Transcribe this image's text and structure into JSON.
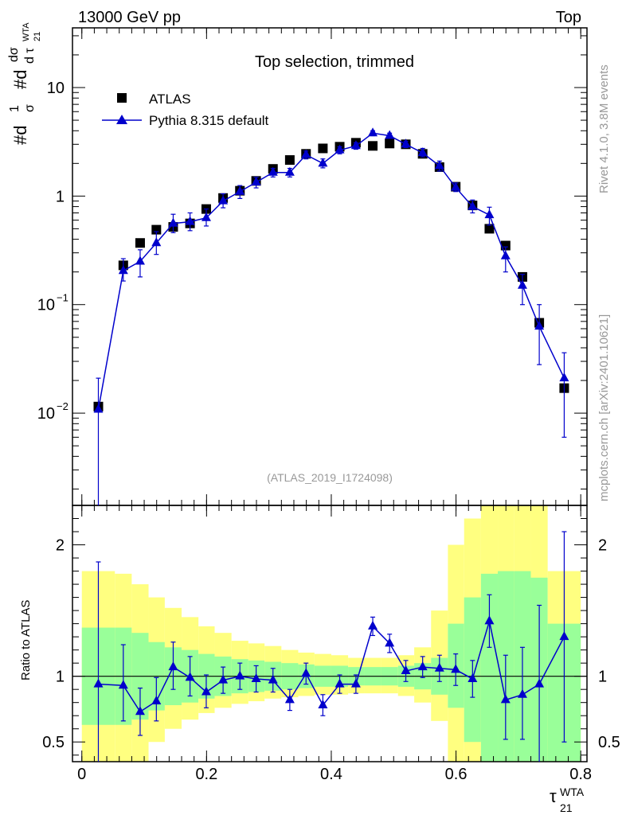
{
  "header": {
    "left": "13000 GeV pp",
    "right": "Top",
    "plot_title": "Top selection, trimmed",
    "analysis_ref": "(ATLAS_2019_I1724098)",
    "side_rivet": "Rivet 4.1.0,  3.8M events",
    "side_mcplots": "mcplots.cern.ch [arXiv:2401.10621]"
  },
  "axes": {
    "ylabel_main": "#d1/σ #dσ/dτ21WTA",
    "ylabel_main_frac1_num": "1",
    "ylabel_main_frac1_den": "σ",
    "ylabel_main_prefix": "#d",
    "ylabel_main_frac2_num": "dσ",
    "ylabel_main_frac2_den": "d τ",
    "ylabel_main_sup": "WTA",
    "ylabel_main_sub": "21",
    "ylabel_ratio": "Ratio to ATLAS",
    "xlabel_base": "τ",
    "xlabel_sup": "WTA",
    "xlabel_sub": "21",
    "x_ticks": [
      "0",
      "0.2",
      "0.4",
      "0.6",
      "0.8"
    ],
    "y_main_ticks": [
      "10",
      "1",
      "10",
      "10"
    ],
    "y_main_tick_exps": [
      "",
      "",
      "−1",
      "−2"
    ],
    "y_ratio_ticks": [
      "2",
      "1",
      "0.5"
    ]
  },
  "legend": {
    "data": "ATLAS",
    "mc": "Pythia 8.315 default"
  },
  "colors": {
    "mc": "#0000cc",
    "data": "#000000",
    "band_inner": "#99ff99",
    "band_outer": "#ffff80"
  },
  "chart_data": {
    "type": "scatter",
    "x_range": [
      -0.015,
      0.81
    ],
    "y_main_range_log10": [
      -2.85,
      1.55
    ],
    "y_ratio_range": [
      0.35,
      2.3
    ],
    "x": [
      0.0265,
      0.0665,
      0.0935,
      0.1195,
      0.1465,
      0.1735,
      0.1995,
      0.2265,
      0.2535,
      0.2795,
      0.3065,
      0.3335,
      0.3595,
      0.3865,
      0.4135,
      0.4395,
      0.4665,
      0.4935,
      0.5195,
      0.5465,
      0.5735,
      0.5995,
      0.6265,
      0.6535,
      0.6795,
      0.7065,
      0.7335,
      0.7735
    ],
    "series": [
      {
        "name": "ATLAS",
        "values": [
          0.0115,
          0.23,
          0.37,
          0.49,
          0.52,
          0.56,
          0.76,
          0.96,
          1.12,
          1.38,
          1.78,
          2.15,
          2.45,
          2.75,
          2.85,
          3.1,
          2.9,
          3.05,
          3.0,
          2.45,
          1.85,
          1.22,
          0.82,
          0.5,
          0.35,
          0.18,
          0.068,
          0.017
        ]
      },
      {
        "name": "Pythia 8.315 default",
        "values": [
          0.0108,
          0.205,
          0.25,
          0.37,
          0.56,
          0.58,
          0.63,
          0.9,
          1.1,
          1.34,
          1.65,
          1.65,
          2.4,
          2.0,
          2.65,
          2.9,
          3.8,
          3.6,
          3.0,
          2.5,
          1.9,
          1.2,
          0.8,
          0.67,
          0.28,
          0.15,
          0.063,
          0.021
        ],
        "err_low": [
          0.0108,
          0.04,
          0.07,
          0.08,
          0.1,
          0.1,
          0.1,
          0.12,
          0.15,
          0.15,
          0.15,
          0.15,
          0.2,
          0.18,
          0.2,
          0.2,
          0.2,
          0.2,
          0.2,
          0.2,
          0.2,
          0.1,
          0.1,
          0.13,
          0.08,
          0.05,
          0.035,
          0.015
        ],
        "err_high": [
          0.0102,
          0.06,
          0.07,
          0.1,
          0.12,
          0.12,
          0.13,
          0.15,
          0.15,
          0.15,
          0.15,
          0.15,
          0.2,
          0.2,
          0.2,
          0.2,
          0.2,
          0.2,
          0.2,
          0.25,
          0.2,
          0.12,
          0.12,
          0.12,
          0.06,
          0.04,
          0.037,
          0.015
        ]
      }
    ],
    "ratio": {
      "values": [
        0.94,
        0.93,
        0.73,
        0.81,
        1.07,
        0.99,
        0.88,
        0.97,
        1.0,
        0.98,
        0.97,
        0.82,
        1.02,
        0.78,
        0.94,
        0.94,
        1.38,
        1.25,
        1.04,
        1.07,
        1.06,
        1.05,
        0.98,
        1.42,
        0.82,
        0.86,
        0.94,
        1.3
      ],
      "err_low": [
        0.94,
        0.27,
        0.18,
        0.15,
        0.17,
        0.14,
        0.12,
        0.1,
        0.1,
        0.1,
        0.09,
        0.08,
        0.08,
        0.08,
        0.07,
        0.07,
        0.07,
        0.07,
        0.08,
        0.08,
        0.1,
        0.12,
        0.14,
        0.2,
        0.3,
        0.34,
        0.6,
        0.8
      ],
      "err_high": [
        0.93,
        0.31,
        0.18,
        0.18,
        0.19,
        0.16,
        0.13,
        0.1,
        0.1,
        0.1,
        0.09,
        0.08,
        0.08,
        0.08,
        0.07,
        0.07,
        0.07,
        0.07,
        0.08,
        0.08,
        0.1,
        0.12,
        0.14,
        0.2,
        0.34,
        0.36,
        0.6,
        0.8
      ],
      "bin_edges": [
        0.0,
        0.053,
        0.08,
        0.107,
        0.133,
        0.16,
        0.187,
        0.213,
        0.24,
        0.267,
        0.293,
        0.32,
        0.347,
        0.373,
        0.4,
        0.427,
        0.453,
        0.48,
        0.507,
        0.533,
        0.56,
        0.587,
        0.613,
        0.64,
        0.667,
        0.693,
        0.72,
        0.747,
        0.8
      ],
      "band_inner": [
        [
          0.63,
          1.37
        ],
        [
          0.63,
          1.37
        ],
        [
          0.67,
          1.33
        ],
        [
          0.74,
          1.26
        ],
        [
          0.78,
          1.22
        ],
        [
          0.8,
          1.2
        ],
        [
          0.83,
          1.17
        ],
        [
          0.85,
          1.15
        ],
        [
          0.87,
          1.13
        ],
        [
          0.88,
          1.12
        ],
        [
          0.89,
          1.11
        ],
        [
          0.9,
          1.1
        ],
        [
          0.91,
          1.09
        ],
        [
          0.92,
          1.08
        ],
        [
          0.92,
          1.08
        ],
        [
          0.93,
          1.07
        ],
        [
          0.93,
          1.07
        ],
        [
          0.93,
          1.07
        ],
        [
          0.92,
          1.08
        ],
        [
          0.9,
          1.1
        ],
        [
          0.86,
          1.14
        ],
        [
          0.76,
          1.4
        ],
        [
          0.5,
          1.6
        ],
        [
          0.3,
          1.78
        ],
        [
          0.25,
          1.8
        ],
        [
          0.25,
          1.8
        ],
        [
          0.25,
          1.75
        ],
        [
          0.3,
          1.4
        ]
      ],
      "band_outer": [
        [
          0.2,
          1.8
        ],
        [
          0.25,
          1.78
        ],
        [
          0.3,
          1.7
        ],
        [
          0.5,
          1.6
        ],
        [
          0.6,
          1.52
        ],
        [
          0.67,
          1.45
        ],
        [
          0.72,
          1.38
        ],
        [
          0.76,
          1.33
        ],
        [
          0.79,
          1.27
        ],
        [
          0.81,
          1.25
        ],
        [
          0.83,
          1.23
        ],
        [
          0.84,
          1.2
        ],
        [
          0.85,
          1.18
        ],
        [
          0.86,
          1.17
        ],
        [
          0.86,
          1.16
        ],
        [
          0.87,
          1.14
        ],
        [
          0.87,
          1.14
        ],
        [
          0.87,
          1.14
        ],
        [
          0.85,
          1.16
        ],
        [
          0.8,
          1.22
        ],
        [
          0.66,
          1.5
        ],
        [
          0.35,
          2.0
        ],
        [
          0.3,
          2.2
        ],
        [
          0.3,
          2.3
        ],
        [
          0.3,
          2.5
        ],
        [
          0.3,
          2.5
        ],
        [
          0.3,
          2.4
        ],
        [
          0.3,
          1.8
        ]
      ]
    }
  }
}
